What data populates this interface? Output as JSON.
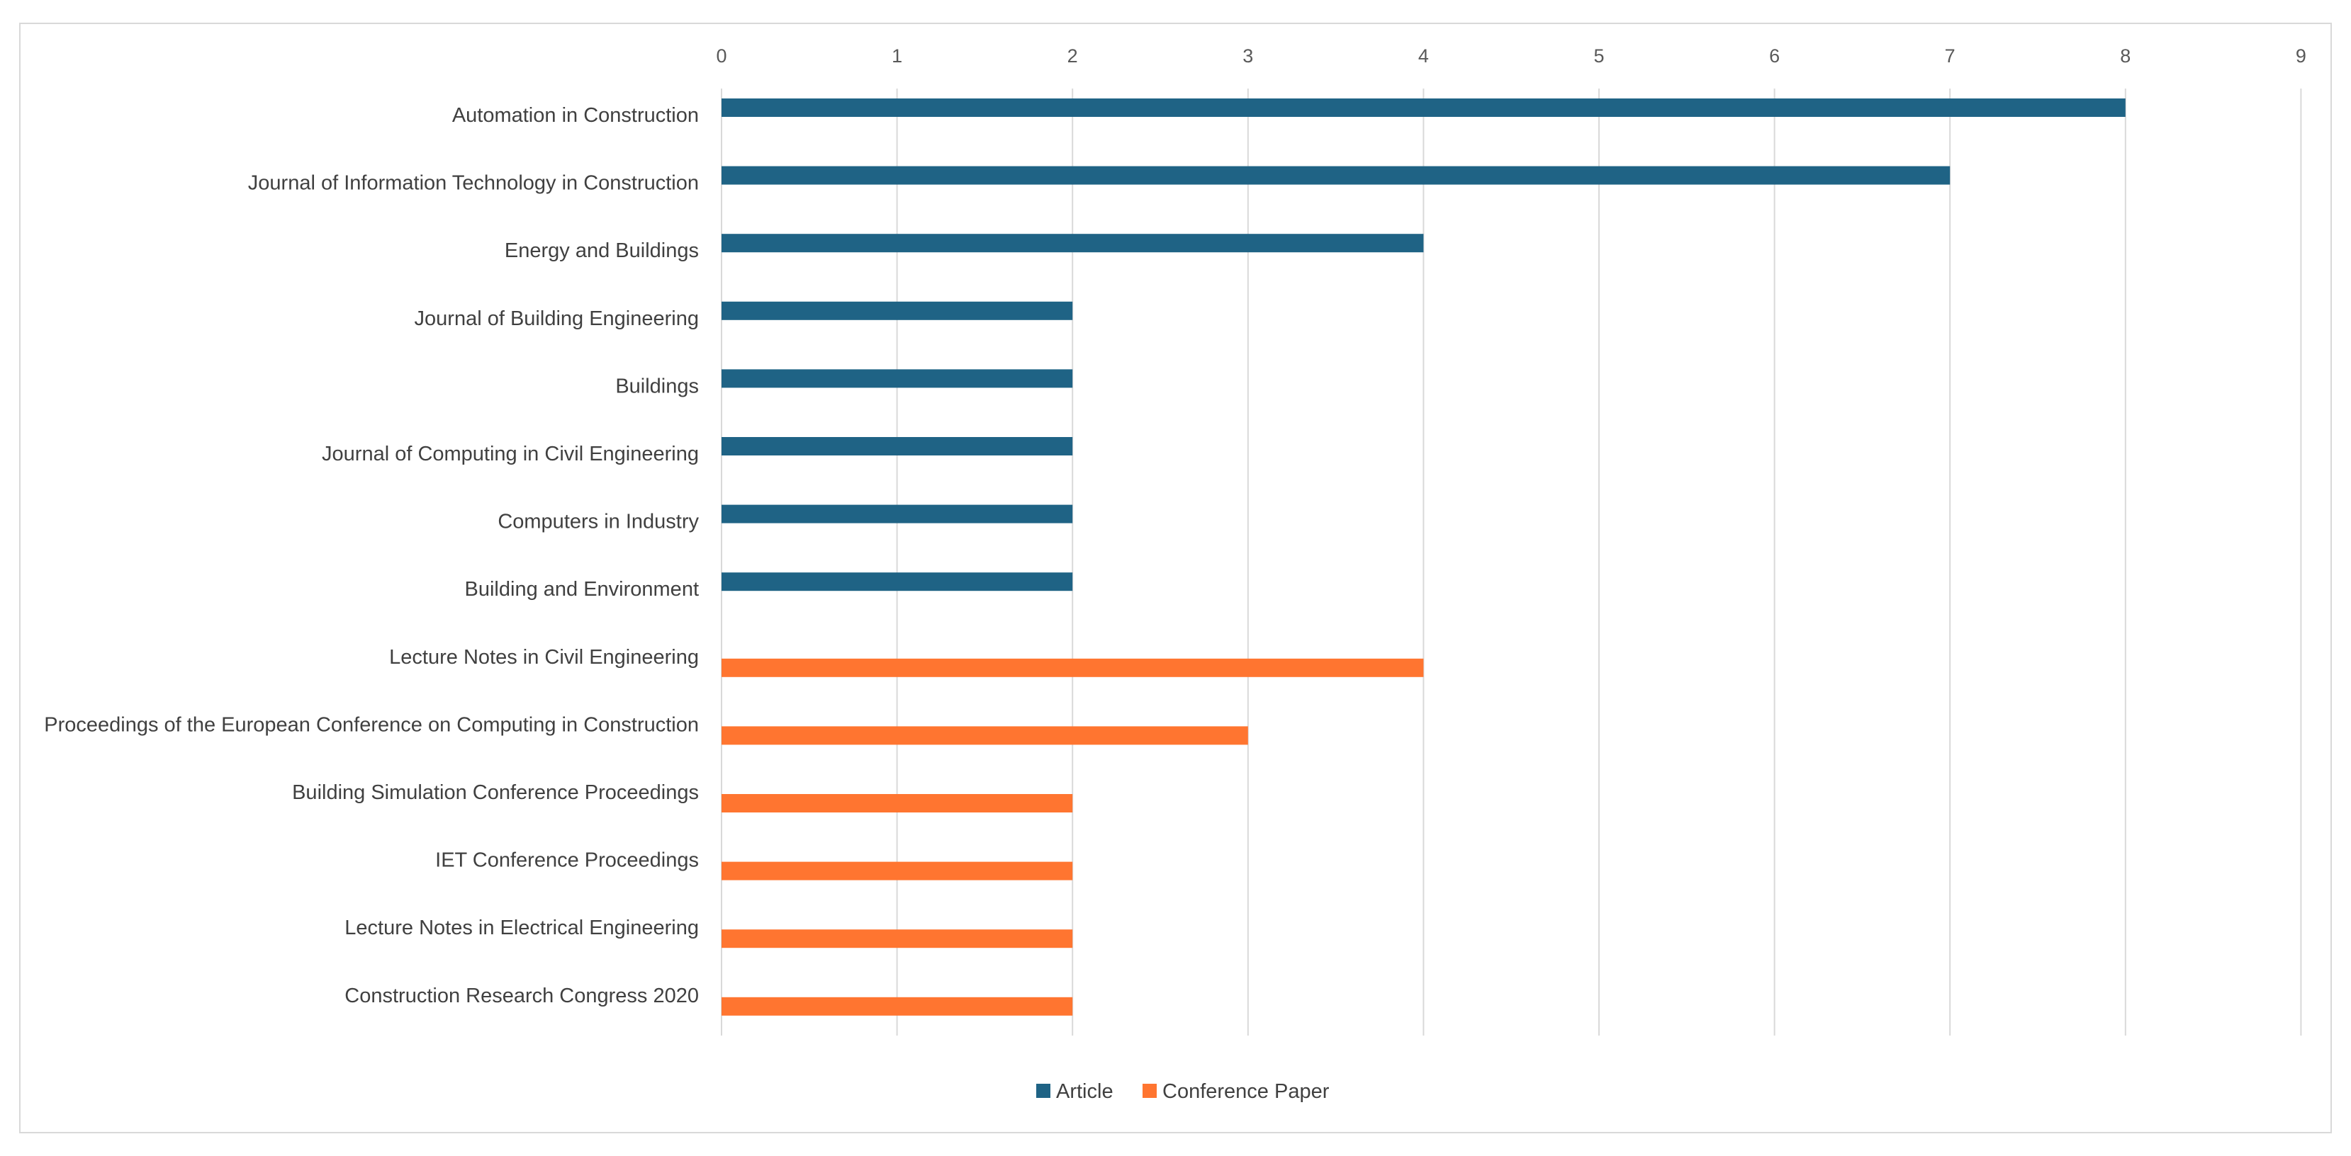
{
  "chart_data": {
    "type": "bar",
    "orientation": "horizontal",
    "title": "",
    "xlabel": "",
    "ylabel": "",
    "xlim": [
      0,
      9
    ],
    "ticks": [
      "0",
      "1",
      "2",
      "3",
      "4",
      "5",
      "6",
      "7",
      "8",
      "9"
    ],
    "grid": true,
    "legend_position": "bottom",
    "categories": [
      "Automation in Construction",
      "Journal of Information Technology in Construction",
      "Energy and Buildings",
      "Journal of Building Engineering",
      "Buildings",
      "Journal of Computing in Civil Engineering",
      "Computers in Industry",
      "Building and Environment",
      "Lecture Notes in Civil Engineering",
      "Proceedings of the European Conference on Computing in Construction",
      "Building Simulation Conference Proceedings",
      "IET Conference Proceedings",
      "Lecture Notes in Electrical Engineering",
      "Construction Research Congress 2020"
    ],
    "series": [
      {
        "name": "Article",
        "color": "#1f6385",
        "values": [
          8,
          7,
          4,
          2,
          2,
          2,
          2,
          2,
          null,
          null,
          null,
          null,
          null,
          null
        ]
      },
      {
        "name": "Conference Paper",
        "color": "#ff7530",
        "values": [
          null,
          null,
          null,
          null,
          null,
          null,
          null,
          null,
          4,
          3,
          2,
          2,
          2,
          2
        ]
      }
    ]
  }
}
